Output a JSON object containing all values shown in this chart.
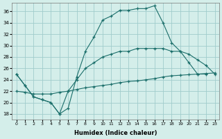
{
  "xlabel": "Humidex (Indice chaleur)",
  "ylabel": "",
  "background_color": "#d4eeea",
  "grid_color": "#a0cccc",
  "line_color": "#1a6e6a",
  "xlim": [
    -0.5,
    23.5
  ],
  "ylim": [
    17,
    37.5
  ],
  "xtick_labels": [
    "0",
    "1",
    "2",
    "3",
    "4",
    "5",
    "6",
    "7",
    "8",
    "9",
    "10",
    "11",
    "12",
    "13",
    "14",
    "15",
    "16",
    "17",
    "18",
    "19",
    "20",
    "21",
    "22",
    "23"
  ],
  "ytick_values": [
    18,
    20,
    22,
    24,
    26,
    28,
    30,
    32,
    34,
    36
  ],
  "line1_x": [
    0,
    1,
    2,
    3,
    4,
    5,
    6,
    7,
    8,
    9,
    10,
    11,
    12,
    13,
    14,
    15,
    16,
    17,
    18,
    19,
    20,
    21,
    22
  ],
  "line1_y": [
    25,
    23,
    21,
    20.5,
    20,
    18,
    19,
    24.5,
    29,
    31.5,
    34.5,
    35.2,
    36.2,
    36.2,
    36.5,
    36.5,
    37,
    34,
    30.5,
    29,
    27,
    25,
    25
  ],
  "line2_x": [
    0,
    1,
    2,
    3,
    4,
    5,
    6,
    7,
    8,
    9,
    10,
    11,
    12,
    13,
    14,
    15,
    16,
    17,
    18,
    19,
    20,
    21,
    22,
    23
  ],
  "line2_y": [
    25,
    23,
    21,
    20.5,
    20,
    18,
    22,
    24,
    26,
    27,
    28,
    28.5,
    29,
    29,
    29.5,
    29.5,
    29.5,
    29.5,
    29,
    29,
    28.5,
    27.5,
    26.5,
    25
  ],
  "line3_x": [
    0,
    1,
    2,
    3,
    4,
    5,
    6,
    7,
    8,
    9,
    10,
    11,
    12,
    13,
    14,
    15,
    16,
    17,
    18,
    19,
    20,
    21,
    22,
    23
  ],
  "line3_y": [
    22,
    21.8,
    21.5,
    21.5,
    21.5,
    21.8,
    22,
    22.3,
    22.6,
    22.8,
    23,
    23.2,
    23.5,
    23.7,
    23.8,
    24,
    24.2,
    24.5,
    24.7,
    24.8,
    24.9,
    25,
    25.1,
    25.2
  ]
}
